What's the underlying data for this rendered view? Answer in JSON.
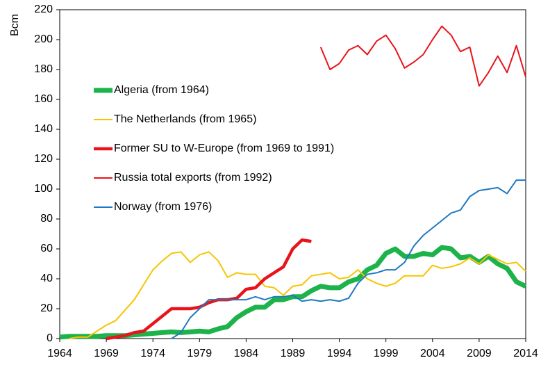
{
  "chart_data": {
    "type": "line",
    "ylabel": "Bcm",
    "xlim": [
      1964,
      2014
    ],
    "xticks": [
      1964,
      1969,
      1974,
      1979,
      1984,
      1989,
      1994,
      1999,
      2004,
      2009,
      2014
    ],
    "ylim": [
      0,
      220
    ],
    "yticks": [
      0,
      20,
      40,
      60,
      80,
      100,
      120,
      140,
      160,
      180,
      200,
      220
    ],
    "series": [
      {
        "name": "Algeria (from 1964)",
        "color": "#1db34a",
        "line_width": 7,
        "x": [
          1964,
          1965,
          1966,
          1967,
          1968,
          1969,
          1970,
          1971,
          1972,
          1973,
          1974,
          1975,
          1976,
          1977,
          1978,
          1979,
          1980,
          1981,
          1982,
          1983,
          1984,
          1985,
          1986,
          1987,
          1988,
          1989,
          1990,
          1991,
          1992,
          1993,
          1994,
          1995,
          1996,
          1997,
          1998,
          1999,
          2000,
          2001,
          2002,
          2003,
          2004,
          2005,
          2006,
          2007,
          2008,
          2009,
          2010,
          2011,
          2012,
          2013,
          2014
        ],
        "values": [
          1,
          1.5,
          1.5,
          1.5,
          1.5,
          2,
          2,
          2,
          2.5,
          3,
          3.5,
          4,
          4.5,
          4,
          4.5,
          5,
          4.5,
          6.5,
          8,
          14,
          18,
          21,
          21,
          26,
          26,
          28,
          28,
          32,
          35,
          34,
          34,
          38,
          40,
          46,
          49,
          57,
          60,
          55,
          55,
          57,
          56,
          61,
          60,
          54,
          55,
          51,
          55,
          50,
          47,
          38,
          35
        ]
      },
      {
        "name": "The Netherlands (from 1965)",
        "color": "#f7c400",
        "line_width": 2,
        "x": [
          1965,
          1966,
          1967,
          1968,
          1969,
          1970,
          1971,
          1972,
          1973,
          1974,
          1975,
          1976,
          1977,
          1978,
          1979,
          1980,
          1981,
          1982,
          1983,
          1984,
          1985,
          1986,
          1987,
          1988,
          1989,
          1990,
          1991,
          1992,
          1993,
          1994,
          1995,
          1996,
          1997,
          1998,
          1999,
          2000,
          2001,
          2002,
          2003,
          2004,
          2005,
          2006,
          2007,
          2008,
          2009,
          2010,
          2011,
          2012,
          2013,
          2014
        ],
        "values": [
          0,
          1,
          1,
          5,
          9,
          12,
          19,
          26,
          36,
          46,
          52,
          57,
          58,
          51,
          56,
          58,
          52,
          41,
          44,
          43,
          43,
          35,
          34,
          29,
          35,
          36,
          42,
          43,
          44,
          40,
          41,
          46,
          40,
          37,
          35,
          37,
          42,
          42,
          42,
          49,
          47,
          48,
          50,
          54,
          50,
          56,
          53,
          50,
          51,
          45
        ]
      },
      {
        "name": "Former SU to W-Europe (from 1969 to 1991)",
        "color": "#e8141b",
        "line_width": 4.5,
        "x": [
          1969,
          1970,
          1971,
          1972,
          1973,
          1974,
          1975,
          1976,
          1977,
          1978,
          1979,
          1980,
          1981,
          1982,
          1983,
          1984,
          1985,
          1986,
          1987,
          1988,
          1989,
          1990,
          1991
        ],
        "values": [
          0,
          1,
          2,
          4,
          5,
          10,
          15,
          20,
          20,
          20,
          21,
          24,
          26,
          26,
          27,
          33,
          34,
          40,
          44,
          48,
          60,
          66,
          65
        ]
      },
      {
        "name": "Russia total exports (from 1992)",
        "color": "#e8141b",
        "line_width": 2,
        "x": [
          1992,
          1993,
          1994,
          1995,
          1996,
          1997,
          1998,
          1999,
          2000,
          2001,
          2002,
          2003,
          2004,
          2005,
          2006,
          2007,
          2008,
          2009,
          2010,
          2011,
          2012,
          2013,
          2014
        ],
        "values": [
          195,
          180,
          184,
          193,
          196,
          190,
          199,
          203,
          194,
          181,
          185,
          190,
          200,
          209,
          203,
          192,
          195,
          169,
          178,
          189,
          178,
          196,
          175
        ]
      },
      {
        "name": "Norway (from 1976)",
        "color": "#1f78c1",
        "line_width": 2,
        "x": [
          1976,
          1977,
          1978,
          1979,
          1980,
          1981,
          1982,
          1983,
          1984,
          1985,
          1986,
          1987,
          1988,
          1989,
          1990,
          1991,
          1992,
          1993,
          1994,
          1995,
          1996,
          1997,
          1998,
          1999,
          2000,
          2001,
          2002,
          2003,
          2004,
          2005,
          2006,
          2007,
          2008,
          2009,
          2010,
          2011,
          2012,
          2013,
          2014
        ],
        "values": [
          0,
          4,
          14,
          20,
          26,
          26,
          26,
          26,
          26,
          28,
          26,
          28,
          28,
          29,
          25,
          26,
          25,
          26,
          25,
          27,
          37,
          43,
          44,
          46,
          46,
          51,
          62,
          69,
          74,
          79,
          84,
          86,
          95,
          99,
          100,
          101,
          97,
          106,
          106
        ]
      }
    ]
  }
}
